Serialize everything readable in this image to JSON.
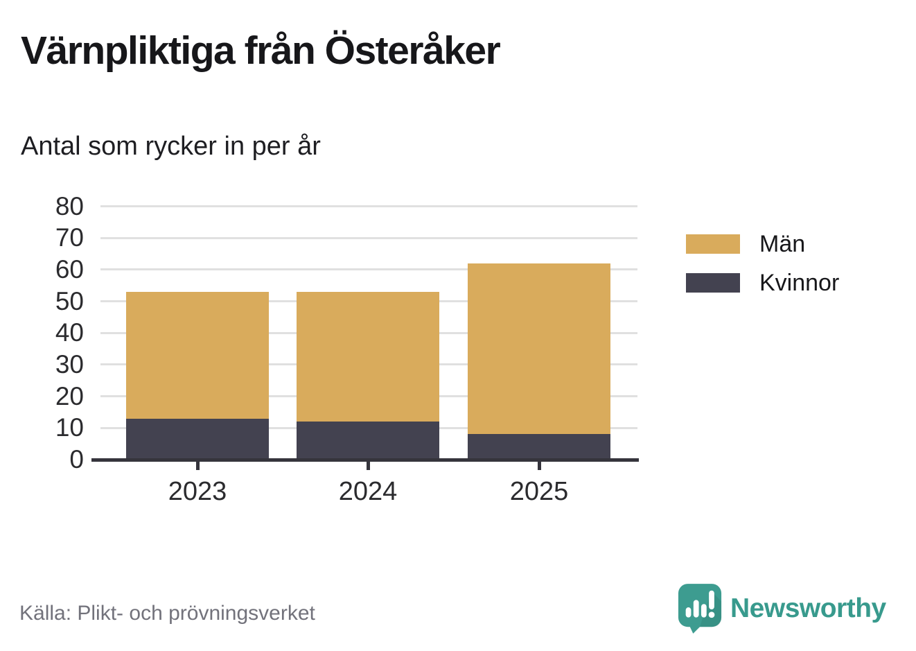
{
  "title": "Värnpliktiga från Österåker",
  "subtitle": "Antal som rycker in per år",
  "source": "Källa: Plikt- och prövningsverket",
  "branding": {
    "name": "Newsworthy",
    "icon": "bar-chart-speech-bubble-icon",
    "color": "#389a8d",
    "icon_color": "#3d9c90"
  },
  "colors": {
    "gridline": "#e0e0e0",
    "axis": "#35343c",
    "title_text": "#17171a",
    "tick_text": "#2b2b2e",
    "source_text": "#72727b"
  },
  "chart_data": {
    "type": "bar",
    "stacked": true,
    "title": "Värnpliktiga från Österåker",
    "subtitle": "Antal som rycker in per år",
    "categories": [
      "2023",
      "2024",
      "2025"
    ],
    "series": [
      {
        "name": "Kvinnor",
        "color": "#434250",
        "values": [
          13,
          12,
          8
        ]
      },
      {
        "name": "Män",
        "color": "#d9ab5c",
        "values": [
          40,
          41,
          54
        ]
      }
    ],
    "totals": [
      53,
      53,
      62
    ],
    "yticks": [
      0,
      10,
      20,
      30,
      40,
      50,
      60,
      70,
      80
    ],
    "ylim": [
      0,
      80
    ],
    "xlabel": "",
    "ylabel": "",
    "grid": true,
    "legend_position": "right",
    "legend_order": [
      "Män",
      "Kvinnor"
    ]
  }
}
